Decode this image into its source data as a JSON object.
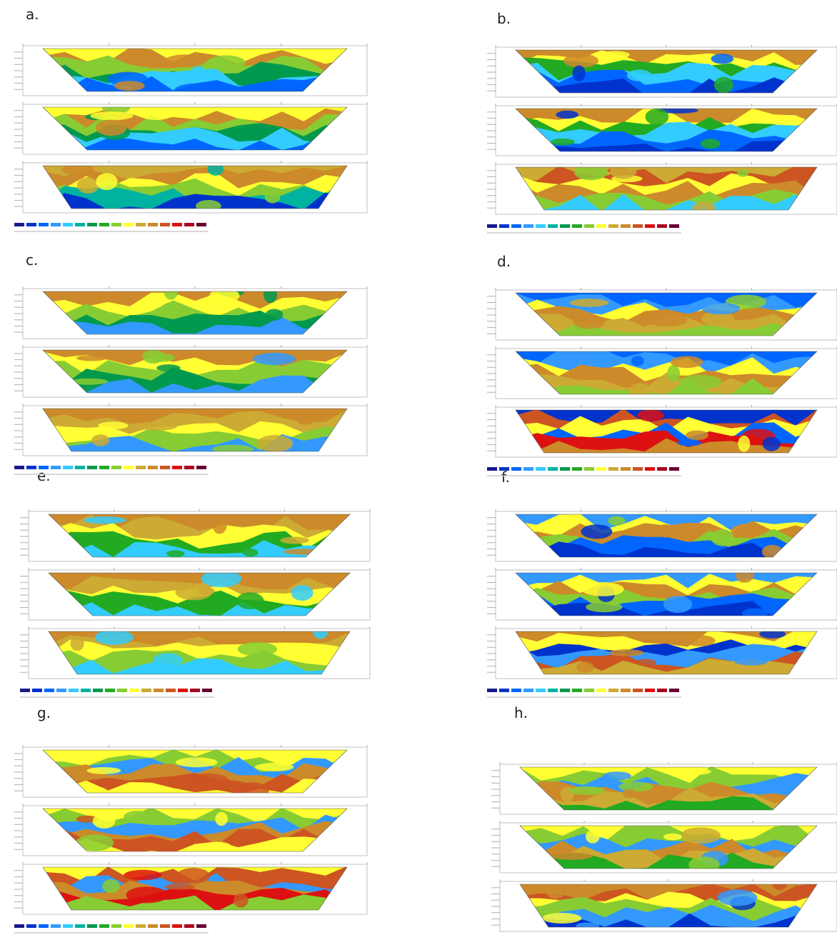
{
  "panels": [
    {
      "letter": "a."
    },
    {
      "letter": "b."
    },
    {
      "letter": "c."
    },
    {
      "letter": "d."
    },
    {
      "letter": "e."
    },
    {
      "letter": "f."
    },
    {
      "letter": "g."
    },
    {
      "letter": "h."
    }
  ],
  "palette": [
    "#1a1a8c",
    "#0033cc",
    "#0066ff",
    "#3399ff",
    "#33ccff",
    "#00b3a0",
    "#00994d",
    "#22aa22",
    "#88cc33",
    "#ffff33",
    "#ccaa33",
    "#cc8a2a",
    "#cc5522",
    "#dd1111",
    "#aa0022",
    "#660033"
  ]
}
